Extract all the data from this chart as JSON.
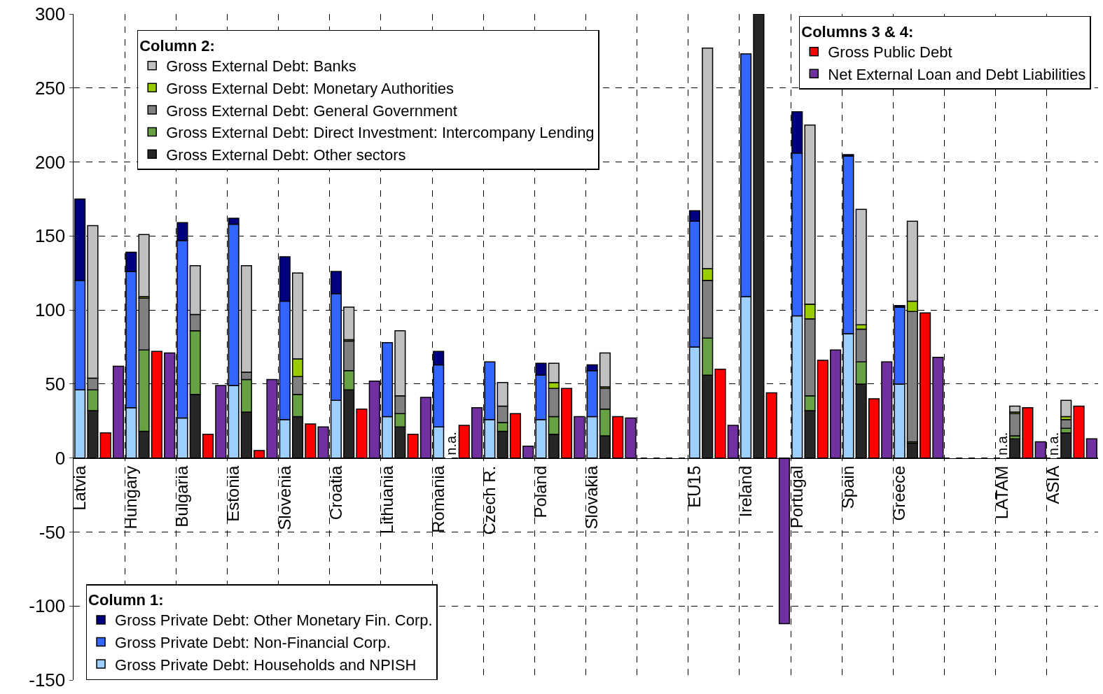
{
  "chart_data": {
    "type": "bar",
    "stacked": true,
    "grid": true,
    "categories": [
      "Latvia",
      null,
      null,
      null,
      "Hungary",
      null,
      null,
      null,
      "Bulgaria",
      null,
      null,
      null,
      "Estonia",
      null,
      null,
      null,
      "Slovenia",
      null,
      null,
      null,
      "Croatia",
      null,
      null,
      null,
      "Lithuania",
      null,
      null,
      null,
      "Romania",
      null,
      null,
      null,
      "Czech R.",
      null,
      null,
      null,
      "Poland",
      null,
      null,
      null,
      "Slovakia",
      null,
      null,
      null,
      null,
      null,
      null,
      null,
      "EU15",
      null,
      null,
      null,
      "Ireland",
      null,
      null,
      null,
      "Portugal",
      null,
      null,
      null,
      "Spain",
      null,
      null,
      null,
      "Greece",
      null,
      null,
      null,
      null,
      null,
      null,
      null,
      "LATAM",
      null,
      null,
      null,
      "ASIA",
      null,
      null,
      null
    ],
    "ylim": [
      -150,
      300
    ],
    "yticks": [
      -150,
      -100,
      -50,
      0,
      50,
      100,
      150,
      200,
      250,
      300
    ],
    "legend": [
      "bottom left",
      "top left",
      "top right"
    ],
    "legend_title": [
      "Column 1:",
      "Column 2:",
      "Columns 3 & 4:"
    ],
    "series": [
      {
        "name": "Gross Private Debt: Households and NPISH",
        "color": "#9dcfff",
        "values": [
          46,
          null,
          null,
          null,
          34,
          null,
          null,
          null,
          27,
          null,
          null,
          null,
          49,
          null,
          null,
          null,
          26,
          null,
          null,
          null,
          39,
          null,
          null,
          null,
          28,
          null,
          null,
          null,
          21,
          null,
          null,
          null,
          26,
          null,
          null,
          null,
          26,
          null,
          null,
          null,
          28,
          null,
          null,
          null,
          null,
          null,
          null,
          null,
          75,
          null,
          null,
          null,
          109,
          null,
          null,
          null,
          96,
          null,
          null,
          null,
          84,
          null,
          null,
          null,
          50,
          null,
          null,
          null,
          null,
          null,
          null,
          null,
          null,
          null,
          null,
          null,
          null,
          null,
          null,
          null
        ],
        "value_labels": [
          null,
          null,
          null,
          null,
          null,
          null,
          null,
          null,
          null,
          null,
          null,
          null,
          null,
          null,
          null,
          null,
          null,
          null,
          null,
          null,
          null,
          null,
          null,
          null,
          null,
          null,
          null,
          null,
          null,
          null,
          null,
          null,
          null,
          null,
          null,
          null,
          null,
          null,
          null,
          null,
          null,
          null,
          null,
          null,
          null,
          null,
          null,
          null,
          null,
          null,
          null,
          null,
          null,
          null,
          null,
          null,
          null,
          null,
          null,
          null,
          null,
          null,
          null,
          null,
          null,
          null,
          null,
          null,
          null,
          null,
          null,
          null,
          "n.a.",
          null,
          null,
          null,
          "n.a.",
          null,
          null,
          null
        ]
      },
      {
        "name": "Gross Private Debt: Non-Financial Corp.",
        "color": "#3366ff",
        "values": [
          74,
          null,
          null,
          null,
          92,
          null,
          null,
          null,
          120,
          null,
          null,
          null,
          109,
          null,
          null,
          null,
          80,
          null,
          null,
          null,
          72,
          null,
          null,
          null,
          50,
          null,
          null,
          null,
          42,
          null,
          null,
          null,
          39,
          null,
          null,
          null,
          30,
          null,
          null,
          null,
          31,
          null,
          null,
          null,
          null,
          null,
          null,
          null,
          85,
          null,
          null,
          null,
          164,
          null,
          null,
          null,
          110,
          null,
          null,
          null,
          120,
          null,
          null,
          null,
          52,
          null,
          null,
          null,
          null,
          null,
          null,
          null,
          null,
          null,
          null,
          null,
          null,
          null,
          null,
          null
        ]
      },
      {
        "name": "Gross Private Debt: Other Monetary Fin. Corp.",
        "color": "#000080",
        "values": [
          55,
          null,
          null,
          null,
          13,
          null,
          null,
          null,
          12,
          null,
          null,
          null,
          4,
          null,
          null,
          null,
          30,
          null,
          null,
          null,
          15,
          null,
          null,
          null,
          null,
          null,
          null,
          null,
          9,
          null,
          null,
          null,
          null,
          null,
          null,
          null,
          8,
          null,
          null,
          null,
          4,
          null,
          null,
          null,
          null,
          null,
          null,
          null,
          7,
          null,
          null,
          null,
          null,
          null,
          null,
          null,
          28,
          null,
          null,
          null,
          1,
          null,
          null,
          null,
          1,
          null,
          null,
          null,
          null,
          null,
          null,
          null,
          null,
          null,
          null,
          null,
          null,
          null,
          null,
          null
        ]
      },
      {
        "name": "Gross External Debt: Other sectors",
        "color": "#262626",
        "values": [
          null,
          32,
          null,
          null,
          null,
          18,
          null,
          null,
          null,
          43,
          null,
          null,
          null,
          31,
          null,
          null,
          null,
          28,
          null,
          null,
          null,
          46,
          null,
          null,
          null,
          21,
          null,
          null,
          null,
          null,
          null,
          null,
          null,
          18,
          null,
          null,
          null,
          16,
          null,
          null,
          null,
          15,
          null,
          null,
          null,
          null,
          null,
          null,
          null,
          56,
          null,
          null,
          null,
          300,
          null,
          null,
          null,
          32,
          null,
          null,
          null,
          50,
          null,
          null,
          null,
          10,
          null,
          null,
          null,
          null,
          null,
          null,
          null,
          13,
          null,
          null,
          null,
          17,
          null,
          null
        ],
        "value_labels": [
          null,
          null,
          null,
          null,
          null,
          null,
          null,
          null,
          null,
          null,
          null,
          null,
          null,
          null,
          null,
          null,
          null,
          null,
          null,
          null,
          null,
          null,
          null,
          null,
          null,
          null,
          null,
          null,
          null,
          "n.a.",
          null,
          null,
          null,
          null,
          null,
          null,
          null,
          null,
          null,
          null,
          null,
          null,
          null,
          null,
          null,
          null,
          null,
          null,
          null,
          null,
          null,
          null,
          null,
          null,
          null,
          null,
          null,
          null,
          null,
          null,
          null,
          null,
          null,
          null,
          null,
          null,
          null,
          null,
          null,
          null,
          null,
          null,
          null,
          null,
          null,
          null,
          null,
          null,
          null,
          null
        ]
      },
      {
        "name": "Gross External Debt: Direct Investment: Intercompany Lending",
        "color": "#66a244",
        "values": [
          null,
          14,
          null,
          null,
          null,
          55,
          null,
          null,
          null,
          43,
          null,
          null,
          null,
          22,
          null,
          null,
          null,
          15,
          null,
          null,
          null,
          13,
          null,
          null,
          null,
          9,
          null,
          null,
          null,
          null,
          null,
          null,
          null,
          6,
          null,
          null,
          null,
          12,
          null,
          null,
          null,
          18,
          null,
          null,
          null,
          null,
          null,
          null,
          null,
          25,
          null,
          null,
          null,
          null,
          null,
          null,
          null,
          10,
          null,
          null,
          null,
          15,
          null,
          null,
          null,
          1,
          null,
          null,
          null,
          null,
          null,
          null,
          null,
          2,
          null,
          null,
          null,
          3,
          null,
          null
        ]
      },
      {
        "name": "Gross External Debt: General Government",
        "color": "#808080",
        "values": [
          null,
          8,
          null,
          null,
          null,
          35,
          null,
          null,
          null,
          11,
          null,
          null,
          null,
          5,
          null,
          null,
          null,
          12,
          null,
          null,
          null,
          20,
          null,
          null,
          null,
          12,
          null,
          null,
          null,
          null,
          null,
          null,
          null,
          11,
          null,
          null,
          null,
          19,
          null,
          null,
          null,
          14,
          null,
          null,
          null,
          null,
          null,
          null,
          null,
          39,
          null,
          null,
          null,
          null,
          null,
          null,
          null,
          52,
          null,
          null,
          null,
          22,
          null,
          null,
          null,
          88,
          null,
          null,
          null,
          null,
          null,
          null,
          null,
          15,
          null,
          null,
          null,
          6,
          null,
          null
        ]
      },
      {
        "name": "Gross External Debt: Monetary Authorities",
        "color": "#99cc00",
        "values": [
          null,
          null,
          null,
          null,
          null,
          1,
          null,
          null,
          null,
          null,
          null,
          null,
          null,
          null,
          null,
          null,
          null,
          12,
          null,
          null,
          null,
          1,
          null,
          null,
          null,
          null,
          null,
          null,
          null,
          null,
          null,
          null,
          null,
          null,
          null,
          null,
          null,
          4,
          null,
          null,
          null,
          1,
          null,
          null,
          null,
          null,
          null,
          null,
          null,
          8,
          null,
          null,
          null,
          null,
          null,
          null,
          null,
          10,
          null,
          null,
          null,
          3,
          null,
          null,
          null,
          7,
          null,
          null,
          null,
          null,
          null,
          null,
          null,
          1,
          null,
          null,
          null,
          2,
          null,
          null
        ]
      },
      {
        "name": "Gross External Debt: Banks",
        "color": "#c0c0c0",
        "values": [
          null,
          103,
          null,
          null,
          null,
          42,
          null,
          null,
          null,
          33,
          null,
          null,
          null,
          72,
          null,
          null,
          null,
          58,
          null,
          null,
          null,
          22,
          null,
          null,
          null,
          44,
          null,
          null,
          null,
          null,
          null,
          null,
          null,
          16,
          null,
          null,
          null,
          13,
          null,
          null,
          null,
          23,
          null,
          null,
          null,
          null,
          null,
          null,
          null,
          149,
          null,
          null,
          null,
          null,
          null,
          null,
          null,
          121,
          null,
          null,
          null,
          78,
          null,
          null,
          null,
          54,
          null,
          null,
          null,
          null,
          null,
          null,
          null,
          4,
          null,
          null,
          null,
          11,
          null,
          null
        ]
      },
      {
        "name": "Gross Public Debt",
        "color": "#ff0000",
        "values": [
          null,
          null,
          17,
          null,
          null,
          null,
          72,
          null,
          null,
          null,
          16,
          null,
          null,
          null,
          5,
          null,
          null,
          null,
          23,
          null,
          null,
          null,
          33,
          null,
          null,
          null,
          16,
          null,
          null,
          null,
          22,
          null,
          null,
          null,
          30,
          null,
          null,
          null,
          47,
          null,
          null,
          null,
          28,
          null,
          null,
          null,
          null,
          null,
          null,
          null,
          60,
          null,
          null,
          null,
          44,
          null,
          null,
          null,
          66,
          null,
          null,
          null,
          40,
          null,
          null,
          null,
          98,
          null,
          null,
          null,
          null,
          null,
          null,
          null,
          34,
          null,
          null,
          null,
          35,
          null
        ]
      },
      {
        "name": "Net External Loan and Debt Liabilities",
        "color": "#7030a0",
        "values": [
          null,
          null,
          null,
          62,
          null,
          null,
          null,
          71,
          null,
          null,
          null,
          49,
          null,
          null,
          null,
          53,
          null,
          null,
          null,
          21,
          null,
          null,
          null,
          52,
          null,
          null,
          null,
          41,
          null,
          null,
          null,
          34,
          null,
          null,
          null,
          8,
          null,
          null,
          null,
          28,
          null,
          null,
          null,
          27,
          null,
          null,
          null,
          null,
          null,
          null,
          null,
          22,
          null,
          null,
          null,
          -112,
          null,
          null,
          null,
          73,
          null,
          null,
          null,
          65,
          null,
          null,
          null,
          68,
          null,
          null,
          null,
          null,
          null,
          null,
          null,
          11,
          null,
          null,
          null,
          13
        ]
      }
    ]
  }
}
